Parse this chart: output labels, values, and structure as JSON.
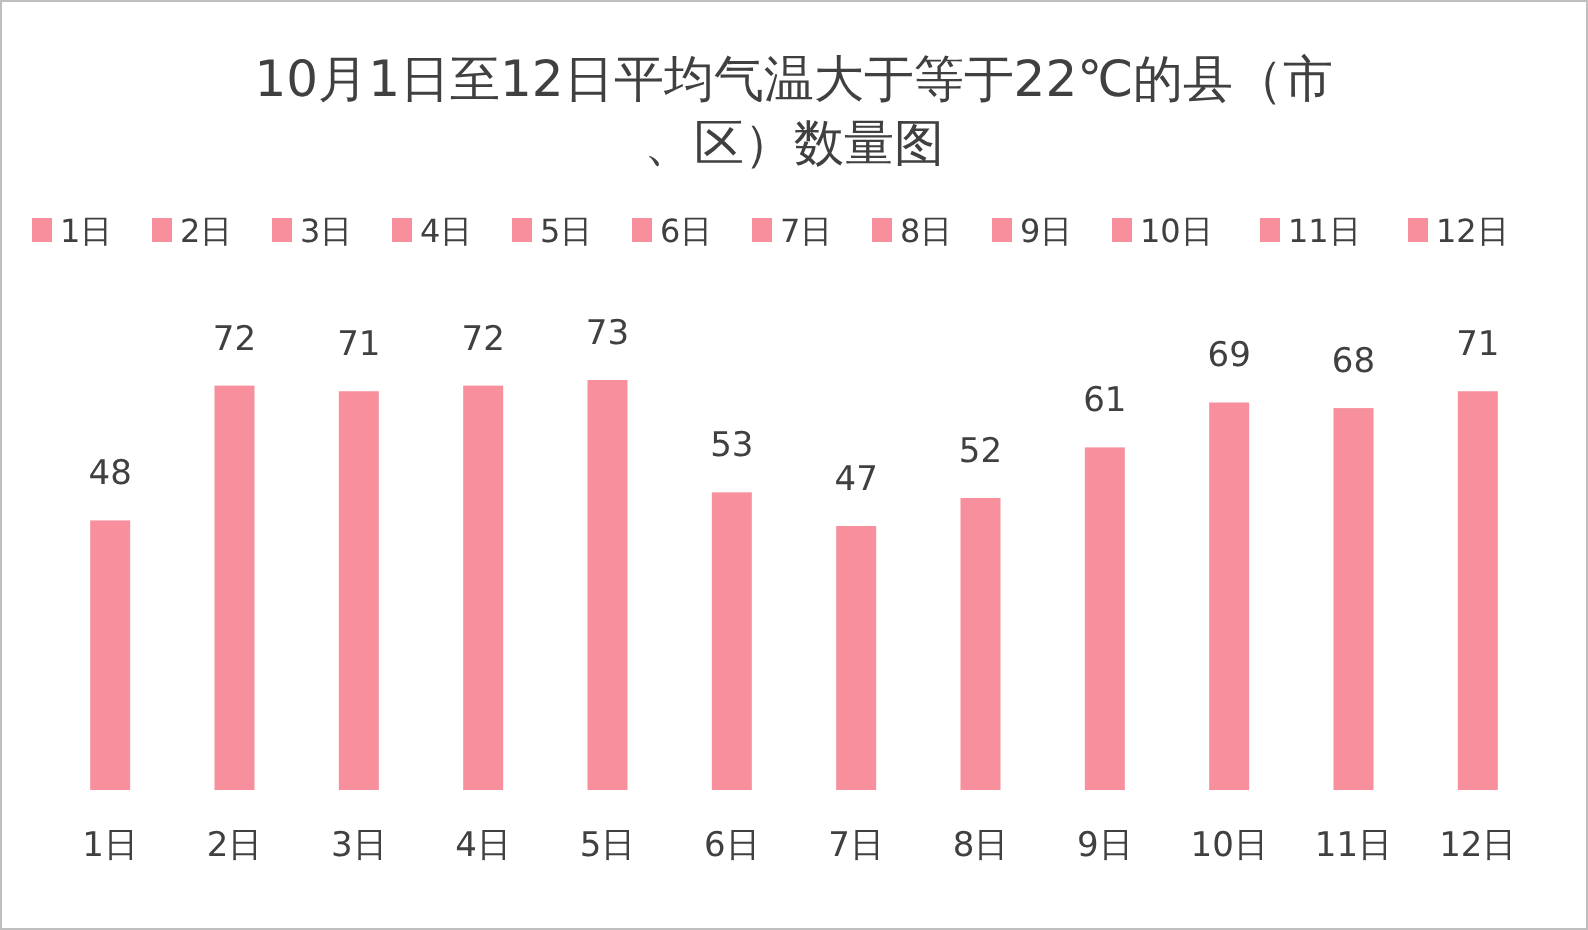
{
  "chart_data": {
    "type": "bar",
    "title": "10月1日至12日平均气温大于等于22℃的县（市、区）数量图",
    "categories": [
      "1日",
      "2日",
      "3日",
      "4日",
      "5日",
      "6日",
      "7日",
      "8日",
      "9日",
      "10日",
      "11日",
      "12日"
    ],
    "series": [
      {
        "name": "1日",
        "color": "#f7909c",
        "values": [
          48,
          null,
          null,
          null,
          null,
          null,
          null,
          null,
          null,
          null,
          null,
          null
        ]
      },
      {
        "name": "2日",
        "color": "#f7909c",
        "values": [
          null,
          72,
          null,
          null,
          null,
          null,
          null,
          null,
          null,
          null,
          null,
          null
        ]
      },
      {
        "name": "3日",
        "color": "#f7909c",
        "values": [
          null,
          null,
          71,
          null,
          null,
          null,
          null,
          null,
          null,
          null,
          null,
          null
        ]
      },
      {
        "name": "4日",
        "color": "#f7909c",
        "values": [
          null,
          null,
          null,
          72,
          null,
          null,
          null,
          null,
          null,
          null,
          null,
          null
        ]
      },
      {
        "name": "5日",
        "color": "#f7909c",
        "values": [
          null,
          null,
          null,
          null,
          73,
          null,
          null,
          null,
          null,
          null,
          null,
          null
        ]
      },
      {
        "name": "6日",
        "color": "#f7909c",
        "values": [
          null,
          null,
          null,
          null,
          null,
          53,
          null,
          null,
          null,
          null,
          null,
          null
        ]
      },
      {
        "name": "7日",
        "color": "#f7909c",
        "values": [
          null,
          null,
          null,
          null,
          null,
          null,
          47,
          null,
          null,
          null,
          null,
          null
        ]
      },
      {
        "name": "8日",
        "color": "#f7909c",
        "values": [
          null,
          null,
          null,
          null,
          null,
          null,
          null,
          52,
          null,
          null,
          null,
          null
        ]
      },
      {
        "name": "9日",
        "color": "#f7909c",
        "values": [
          null,
          null,
          null,
          null,
          null,
          null,
          null,
          null,
          61,
          null,
          null,
          null
        ]
      },
      {
        "name": "10日",
        "color": "#f7909c",
        "values": [
          null,
          null,
          null,
          null,
          null,
          null,
          null,
          null,
          null,
          69,
          null,
          null
        ]
      },
      {
        "name": "11日",
        "color": "#f7909c",
        "values": [
          null,
          null,
          null,
          null,
          null,
          null,
          null,
          null,
          null,
          null,
          68,
          null
        ]
      },
      {
        "name": "12日",
        "color": "#f7909c",
        "values": [
          null,
          null,
          null,
          null,
          null,
          null,
          null,
          null,
          null,
          null,
          null,
          71
        ]
      }
    ],
    "data_labels": true,
    "legend": "top"
  }
}
